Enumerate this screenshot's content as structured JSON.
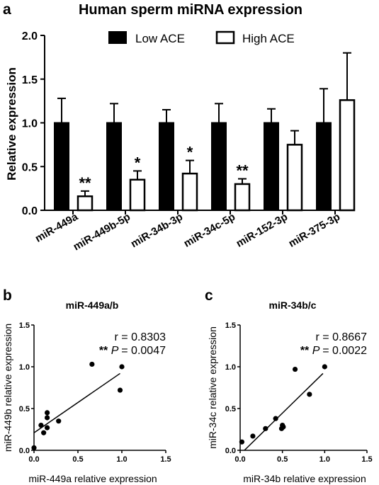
{
  "chart_data": [
    {
      "type": "bar",
      "panel_letter": "a",
      "title": "Human sperm miRNA expression",
      "ylabel": "Relative expression",
      "xlabel": "",
      "ylim": [
        0,
        2.0
      ],
      "yticks": [
        "0.0",
        "0.5",
        "1.0",
        "1.5",
        "2.0"
      ],
      "categories": [
        "miR-449a",
        "miR-449b-5p",
        "miR-34b-3p",
        "miR-34c-5p",
        "miR-152-3p",
        "miR-375-3p"
      ],
      "series": [
        {
          "name": "Low ACE",
          "fill": "#000000",
          "values": [
            1.0,
            1.0,
            1.0,
            1.0,
            1.0,
            1.0
          ],
          "errors": [
            0.28,
            0.22,
            0.15,
            0.22,
            0.16,
            0.39
          ]
        },
        {
          "name": "High ACE",
          "fill": "#ffffff",
          "values": [
            0.16,
            0.35,
            0.42,
            0.3,
            0.75,
            1.26
          ],
          "errors": [
            0.06,
            0.1,
            0.15,
            0.06,
            0.16,
            0.54
          ]
        }
      ],
      "significance": [
        "**",
        "*",
        "*",
        "**",
        "",
        ""
      ],
      "legend_position": "top"
    },
    {
      "type": "scatter",
      "panel_letter": "b",
      "title": "miR-449a/b",
      "xlabel": "miR-449a relative expression",
      "ylabel": "miR-449b relative expression",
      "xlim": [
        0,
        1.5
      ],
      "ylim": [
        0,
        1.5
      ],
      "xticks": [
        "0.0",
        "0.5",
        "1.0",
        "1.5"
      ],
      "yticks": [
        "0.0",
        "0.5",
        "1.0",
        "1.5"
      ],
      "points": [
        {
          "x": 0.0,
          "y": 0.03
        },
        {
          "x": 0.08,
          "y": 0.3
        },
        {
          "x": 0.11,
          "y": 0.21
        },
        {
          "x": 0.15,
          "y": 0.27
        },
        {
          "x": 0.15,
          "y": 0.39
        },
        {
          "x": 0.15,
          "y": 0.45
        },
        {
          "x": 0.28,
          "y": 0.35
        },
        {
          "x": 0.66,
          "y": 1.03
        },
        {
          "x": 0.98,
          "y": 0.72
        },
        {
          "x": 1.0,
          "y": 1.0
        }
      ],
      "fit_line": {
        "x1": 0.0,
        "y1": 0.21,
        "x2": 0.98,
        "y2": 0.92
      },
      "stat_r": "r = 0.8303",
      "stat_sig": "**",
      "stat_p_symbol": "P",
      "stat_p_value": "= 0.0047"
    },
    {
      "type": "scatter",
      "panel_letter": "c",
      "title": "miR-34b/c",
      "xlabel": "miR-34b relative expression",
      "ylabel": "miR-34c relative expression",
      "xlim": [
        0,
        1.5
      ],
      "ylim": [
        0,
        1.5
      ],
      "xticks": [
        "0.0",
        "0.5",
        "1.0",
        "1.5"
      ],
      "yticks": [
        "0.0",
        "0.5",
        "1.0",
        "1.5"
      ],
      "points": [
        {
          "x": 0.02,
          "y": 0.1
        },
        {
          "x": 0.15,
          "y": 0.17
        },
        {
          "x": 0.3,
          "y": 0.26
        },
        {
          "x": 0.42,
          "y": 0.38
        },
        {
          "x": 0.49,
          "y": 0.26
        },
        {
          "x": 0.5,
          "y": 0.3
        },
        {
          "x": 0.51,
          "y": 0.28
        },
        {
          "x": 0.65,
          "y": 0.97
        },
        {
          "x": 0.82,
          "y": 0.67
        },
        {
          "x": 1.0,
          "y": 1.0
        }
      ],
      "fit_line": {
        "x1": 0.05,
        "y1": 0.0,
        "x2": 0.98,
        "y2": 0.92
      },
      "stat_r": "r = 0.8667",
      "stat_sig": "**",
      "stat_p_symbol": "P",
      "stat_p_value": "= 0.0022"
    }
  ]
}
